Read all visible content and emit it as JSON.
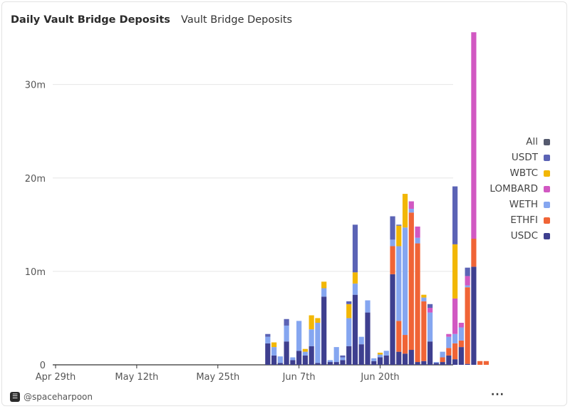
{
  "header": {
    "title": "Daily Vault Bridge Deposits",
    "subtitle": "Vault Bridge Deposits"
  },
  "footer": {
    "author": "@spaceharpoon",
    "more": "···"
  },
  "legend": [
    {
      "label": "All",
      "color": "#555a6e"
    },
    {
      "label": "USDT",
      "color": "#5b63b5"
    },
    {
      "label": "WBTC",
      "color": "#f2b705"
    },
    {
      "label": "LOMBARD",
      "color": "#d158c2"
    },
    {
      "label": "WETH",
      "color": "#85a6f0"
    },
    {
      "label": "ETHFI",
      "color": "#f06436"
    },
    {
      "label": "USDC",
      "color": "#3e3f8f"
    }
  ],
  "chart_data": {
    "type": "bar",
    "stacked": true,
    "x_tick_labels": [
      "Apr 29th",
      "May 12th",
      "May 25th",
      "Jun 7th",
      "Jun 20th"
    ],
    "y_tick_labels": [
      "0",
      "10m",
      "20m",
      "30m"
    ],
    "ylim": [
      0,
      36000000
    ],
    "grid": true,
    "legend_position": "right",
    "series_order": [
      "USDC",
      "ETHFI",
      "WETH",
      "LOMBARD",
      "WBTC",
      "USDT"
    ],
    "colors": {
      "USDC": "#3e3f8f",
      "ETHFI": "#f06436",
      "WETH": "#85a6f0",
      "LOMBARD": "#d158c2",
      "WBTC": "#f2b705",
      "USDT": "#5b63b5"
    },
    "days": [
      {
        "date": "Jun 1",
        "USDC": 2300000,
        "WETH": 700000,
        "USDT": 300000
      },
      {
        "date": "Jun 2",
        "USDC": 1000000,
        "WETH": 900000,
        "WBTC": 500000
      },
      {
        "date": "Jun 3",
        "USDC": 200000,
        "WETH": 700000
      },
      {
        "date": "Jun 4",
        "USDC": 2500000,
        "WETH": 1700000,
        "USDT": 700000
      },
      {
        "date": "Jun 5",
        "USDC": 500000,
        "WETH": 300000
      },
      {
        "date": "Jun 6",
        "USDC": 1500000,
        "WETH": 3200000
      },
      {
        "date": "Jun 7",
        "USDC": 1000000,
        "WETH": 400000,
        "WBTC": 300000
      },
      {
        "date": "Jun 8",
        "USDC": 2000000,
        "WETH": 1800000,
        "WBTC": 1500000
      },
      {
        "date": "Jun 9",
        "USDC": 200000,
        "WETH": 4300000,
        "WBTC": 500000
      },
      {
        "date": "Jun 10",
        "USDC": 7300000,
        "WETH": 900000,
        "WBTC": 700000
      },
      {
        "date": "Jun 11",
        "USDC": 300000,
        "WETH": 200000
      },
      {
        "date": "Jun 12",
        "USDC": 300000,
        "WETH": 1600000
      },
      {
        "date": "Jun 13",
        "USDC": 500000,
        "WETH": 300000,
        "USDT": 200000
      },
      {
        "date": "Jun 14",
        "USDC": 2000000,
        "WETH": 3000000,
        "WBTC": 1500000,
        "USDT": 300000
      },
      {
        "date": "Jun 15",
        "USDC": 7500000,
        "WETH": 1200000,
        "WBTC": 1200000,
        "USDT": 5100000
      },
      {
        "date": "Jun 16",
        "USDC": 2200000,
        "WETH": 800000
      },
      {
        "date": "Jun 17",
        "USDC": 5600000,
        "WETH": 1300000
      },
      {
        "date": "Jun 18",
        "USDC": 400000,
        "WETH": 300000
      },
      {
        "date": "Jun 19",
        "USDC": 800000,
        "WETH": 300000,
        "WBTC": 200000
      },
      {
        "date": "Jun 20",
        "USDC": 1000000,
        "WETH": 500000
      },
      {
        "date": "Jun 21",
        "USDC": 9700000,
        "ETHFI": 3000000,
        "WETH": 700000,
        "USDT": 2500000
      },
      {
        "date": "Jun 22",
        "USDC": 1400000,
        "ETHFI": 3300000,
        "WETH": 8000000,
        "WBTC": 2200000,
        "USDT": 100000
      },
      {
        "date": "Jun 23",
        "USDC": 1200000,
        "ETHFI": 2000000,
        "WETH": 11500000,
        "WBTC": 3600000
      },
      {
        "date": "Jun 24",
        "USDC": 1600000,
        "ETHFI": 14700000,
        "WETH": 400000,
        "LOMBARD": 800000
      },
      {
        "date": "Jun 25",
        "USDC": 300000,
        "ETHFI": 12700000,
        "WETH": 600000,
        "LOMBARD": 1200000
      },
      {
        "date": "Jun 26",
        "USDC": 400000,
        "ETHFI": 6400000,
        "WETH": 400000,
        "WBTC": 300000
      },
      {
        "date": "Jun 27",
        "USDC": 2500000,
        "WETH": 3100000,
        "LOMBARD": 500000,
        "USDT": 400000
      },
      {
        "date": "Jun 28",
        "USDC": 200000,
        "WETH": 100000
      },
      {
        "date": "Jun 29",
        "USDC": 300000,
        "ETHFI": 500000,
        "WETH": 600000
      },
      {
        "date": "Jun 30",
        "USDC": 1000000,
        "ETHFI": 800000,
        "WETH": 1200000,
        "LOMBARD": 300000
      },
      {
        "date": "Jul 1",
        "USDC": 600000,
        "ETHFI": 1700000,
        "WETH": 1000000,
        "LOMBARD": 3800000,
        "WBTC": 5800000,
        "USDT": 6200000
      },
      {
        "date": "Jul 2",
        "USDC": 1900000,
        "ETHFI": 700000,
        "WETH": 1400000,
        "LOMBARD": 500000
      },
      {
        "date": "Jul 3",
        "USDC": 100000,
        "ETHFI": 8200000,
        "WETH": 200000,
        "LOMBARD": 1000000,
        "USDT": 900000
      },
      {
        "date": "Jul 4",
        "USDC": 10500000,
        "ETHFI": 3000000,
        "LOMBARD": 22100000
      },
      {
        "date": "Jul 5",
        "ETHFI": 400000
      },
      {
        "date": "Jul 6",
        "ETHFI": 400000
      }
    ]
  }
}
